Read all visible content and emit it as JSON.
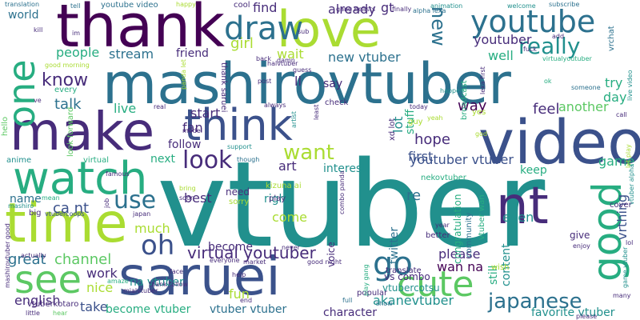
{
  "colors": {
    "background": "#ffffff",
    "palette": [
      "#440154",
      "#472c7a",
      "#3b518b",
      "#2c718e",
      "#21908d",
      "#27ad81",
      "#5cc863",
      "#aadc32",
      "#fde725"
    ]
  },
  "words": [
    {
      "text": "vtuber",
      "color": "#21908d"
    },
    {
      "text": "mashirovtuber",
      "color": "#2c718e"
    },
    {
      "text": "saruei",
      "color": "#3b528b"
    },
    {
      "text": "video",
      "color": "#3b518b"
    },
    {
      "text": "make",
      "color": "#472c7a"
    },
    {
      "text": "time",
      "color": "#aadc32"
    },
    {
      "text": "think",
      "color": "#3b518b"
    },
    {
      "text": "thank",
      "color": "#440154"
    },
    {
      "text": "love",
      "color": "#aadc32"
    },
    {
      "text": "watch",
      "color": "#27ad81"
    },
    {
      "text": "youtube",
      "color": "#2c718e"
    },
    {
      "text": "nt",
      "color": "#472c7a"
    },
    {
      "text": "one",
      "color": "#27ad81"
    },
    {
      "text": "good",
      "color": "#27ad81"
    },
    {
      "text": "see",
      "color": "#5cc863"
    },
    {
      "text": "cute",
      "color": "#5cc863"
    },
    {
      "text": "draw",
      "color": "#2c718e"
    },
    {
      "text": "go",
      "color": "#2c718e"
    },
    {
      "text": "really",
      "color": "#21908d"
    },
    {
      "text": "look",
      "color": "#472c7a"
    },
    {
      "text": "want",
      "color": "#aadc32"
    },
    {
      "text": "new",
      "color": "#2c718e"
    },
    {
      "text": "use",
      "color": "#2c718e"
    },
    {
      "text": "oh",
      "color": "#3b518b"
    },
    {
      "text": "japanese",
      "color": "#2c718e"
    },
    {
      "text": "virtual youtuber",
      "color": "#472c7a"
    },
    {
      "text": "know",
      "color": "#472c7a"
    },
    {
      "text": "stream",
      "color": "#2c718e"
    },
    {
      "text": "people",
      "color": "#27ad81"
    },
    {
      "text": "youtuber vtuber",
      "color": "#3b518b"
    },
    {
      "text": "youtuber",
      "color": "#472c7a"
    },
    {
      "text": "try",
      "color": "#27ad81"
    },
    {
      "text": "day",
      "color": "#27ad81"
    },
    {
      "text": "feel",
      "color": "#472c7a"
    },
    {
      "text": "another",
      "color": "#5cc863"
    },
    {
      "text": "way",
      "color": "#440154"
    },
    {
      "text": "first",
      "color": "#3b518b"
    },
    {
      "text": "hope",
      "color": "#472c7a"
    },
    {
      "text": "art",
      "color": "#472c7a"
    },
    {
      "text": "interest",
      "color": "#21908d"
    },
    {
      "text": "start",
      "color": "#472c7a"
    },
    {
      "text": "fan",
      "color": "#472c7a"
    },
    {
      "text": "live",
      "color": "#27ad81"
    },
    {
      "text": "talk",
      "color": "#2c718e"
    },
    {
      "text": "channel",
      "color": "#5cc863"
    },
    {
      "text": "great",
      "color": "#2c718e"
    },
    {
      "text": "work",
      "color": "#472c7a"
    },
    {
      "text": "nice",
      "color": "#aadc32"
    },
    {
      "text": "english",
      "color": "#472c7a"
    },
    {
      "text": "take",
      "color": "#3b518b"
    },
    {
      "text": "become vtuber",
      "color": "#27ad81"
    },
    {
      "text": "vtuber vtuber",
      "color": "#2c718e"
    },
    {
      "text": "character",
      "color": "#472c7a"
    },
    {
      "text": "akanevtuber",
      "color": "#21908d"
    },
    {
      "text": "favorite vtuber",
      "color": "#21908d"
    },
    {
      "text": "please",
      "color": "#472c7a"
    },
    {
      "text": "wan na",
      "color": "#440154"
    },
    {
      "text": "even",
      "color": "#21908d"
    },
    {
      "text": "still",
      "color": "#27ad81"
    },
    {
      "text": "content",
      "color": "#21908d"
    },
    {
      "text": "come",
      "color": "#aadc32"
    },
    {
      "text": "right",
      "color": "#21908d"
    },
    {
      "text": "re",
      "color": "#2c718e"
    },
    {
      "text": "twitter",
      "color": "#2c718e"
    },
    {
      "text": "vrthing",
      "color": "#3b518b"
    },
    {
      "text": "game",
      "color": "#27ad81"
    },
    {
      "text": "keep",
      "color": "#27ad81"
    },
    {
      "text": "friend",
      "color": "#472c7a"
    },
    {
      "text": "girl",
      "color": "#aadc32"
    },
    {
      "text": "wait",
      "color": "#aadc32"
    },
    {
      "text": "new vtuber",
      "color": "#2c718e"
    },
    {
      "text": "well",
      "color": "#27ad81"
    },
    {
      "text": "find",
      "color": "#472c7a"
    },
    {
      "text": "already",
      "color": "#472c7a"
    },
    {
      "text": "gt",
      "color": "#472c7a"
    },
    {
      "text": "ll",
      "color": "#472c7a"
    },
    {
      "text": "say",
      "color": "#472c7a"
    },
    {
      "text": "lot",
      "color": "#21908d"
    },
    {
      "text": "stuff",
      "color": "#27ad81"
    },
    {
      "text": "much",
      "color": "#aadc32"
    },
    {
      "text": "become",
      "color": "#472c7a"
    },
    {
      "text": "best",
      "color": "#472c7a"
    },
    {
      "text": "na vtuber",
      "color": "#21908d"
    },
    {
      "text": "ca nt",
      "color": "#3b518b"
    },
    {
      "text": "name",
      "color": "#2c718e"
    },
    {
      "text": "fun",
      "color": "#aadc32"
    },
    {
      "text": "next",
      "color": "#27ad81"
    },
    {
      "text": "follow",
      "color": "#472c7a"
    },
    {
      "text": "world",
      "color": "#2c718e"
    },
    {
      "text": "need",
      "color": "#472c7a"
    },
    {
      "text": "voice",
      "color": "#472c7a"
    },
    {
      "text": "please",
      "color": "#472c7a"
    },
    {
      "text": "vtubercotsu",
      "color": "#21908d"
    },
    {
      "text": "vs combo",
      "color": "#472c7a"
    },
    {
      "text": "youtube video",
      "color": "#2c718e"
    },
    {
      "text": "cool",
      "color": "#472c7a"
    },
    {
      "text": "translation",
      "color": "#2c718e"
    },
    {
      "text": "tell",
      "color": "#2c718e"
    },
    {
      "text": "happy",
      "color": "#aadc32"
    },
    {
      "text": "subscribe",
      "color": "#2c718e"
    },
    {
      "text": "animation",
      "color": "#21908d"
    },
    {
      "text": "gang beasts",
      "color": "#472c7a"
    },
    {
      "text": "finally",
      "color": "#472c7a"
    },
    {
      "text": "alpha lexa",
      "color": "#2c718e"
    },
    {
      "text": "vrchat",
      "color": "#2c718e"
    },
    {
      "text": "kill",
      "color": "#472c7a"
    },
    {
      "text": "im",
      "color": "#472c7a"
    },
    {
      "text": "good morning",
      "color": "#aadc32"
    },
    {
      "text": "every",
      "color": "#27ad81"
    },
    {
      "text": "ve",
      "color": "#472c7a"
    },
    {
      "text": "look forward",
      "color": "#5cc863"
    },
    {
      "text": "hello",
      "color": "#5cc863"
    },
    {
      "text": "anime",
      "color": "#21908d"
    },
    {
      "text": "virtual",
      "color": "#27ad81"
    },
    {
      "text": "mashiro",
      "color": "#21908d"
    },
    {
      "text": "mean",
      "color": "#27ad81"
    },
    {
      "text": "big",
      "color": "#472c7a"
    },
    {
      "text": "vtubercoops",
      "color": "#3b518b"
    },
    {
      "text": "japan",
      "color": "#472c7a"
    },
    {
      "text": "mashirovtuber good",
      "color": "#472c7a"
    },
    {
      "text": "actually",
      "color": "#472c7a"
    },
    {
      "text": "little",
      "color": "#472c7a"
    },
    {
      "text": "hear",
      "color": "#5cc863"
    },
    {
      "text": "vtuberkotaro",
      "color": "#472c7a"
    },
    {
      "text": "amaze",
      "color": "#27ad81"
    },
    {
      "text": "mialvtuber",
      "color": "#472c7a"
    },
    {
      "text": "thank follow",
      "color": "#472c7a"
    },
    {
      "text": "face",
      "color": "#472c7a"
    },
    {
      "text": "real",
      "color": "#472c7a"
    },
    {
      "text": "model",
      "color": "#472c7a"
    },
    {
      "text": "support",
      "color": "#21908d"
    },
    {
      "text": "though",
      "color": "#2c718e"
    },
    {
      "text": "famous",
      "color": "#472c7a"
    },
    {
      "text": "kizuna ai",
      "color": "#aadc32"
    },
    {
      "text": "sorry",
      "color": "#aadc32"
    },
    {
      "text": "help",
      "color": "#472c7a"
    },
    {
      "text": "everyone",
      "color": "#472c7a"
    },
    {
      "text": "market",
      "color": "#472c7a"
    },
    {
      "text": "never",
      "color": "#472c7a"
    },
    {
      "text": "good night",
      "color": "#472c7a"
    },
    {
      "text": "end",
      "color": "#472c7a"
    },
    {
      "text": "popular",
      "color": "#472c7a"
    },
    {
      "text": "full",
      "color": "#2c718e"
    },
    {
      "text": "show",
      "color": "#2c718e"
    },
    {
      "text": "translate",
      "color": "#472c7a"
    },
    {
      "text": "year",
      "color": "#472c7a"
    },
    {
      "text": "better",
      "color": "#472c7a"
    },
    {
      "text": "congratulation",
      "color": "#27ad81"
    },
    {
      "text": "community",
      "color": "#2c718e"
    },
    {
      "text": "vtuber wan",
      "color": "#27ad81"
    },
    {
      "text": "nekovtuber",
      "color": "#27ad81"
    },
    {
      "text": "wish",
      "color": "#aadc32"
    },
    {
      "text": "give",
      "color": "#472c7a"
    },
    {
      "text": "enjoy",
      "color": "#472c7a"
    },
    {
      "text": "cover",
      "color": "#472c7a"
    },
    {
      "text": "lol",
      "color": "#472c7a"
    },
    {
      "text": "game vtuber",
      "color": "#21908d"
    },
    {
      "text": "many",
      "color": "#472c7a"
    },
    {
      "text": "let play",
      "color": "#aadc32"
    },
    {
      "text": "vtuber alpha",
      "color": "#21908d"
    },
    {
      "text": "live video",
      "color": "#21908d"
    },
    {
      "text": "someone",
      "color": "#2c718e"
    },
    {
      "text": "ok",
      "color": "#27ad81"
    },
    {
      "text": "call",
      "color": "#472c7a"
    },
    {
      "text": "god",
      "color": "#aadc32"
    },
    {
      "text": "yes",
      "color": "#aadc32"
    },
    {
      "text": "guy",
      "color": "#aadc32"
    },
    {
      "text": "yeah",
      "color": "#aadc32"
    },
    {
      "text": "today",
      "color": "#472c7a"
    },
    {
      "text": "check",
      "color": "#472c7a"
    },
    {
      "text": "least",
      "color": "#472c7a"
    },
    {
      "text": "artist",
      "color": "#21908d"
    },
    {
      "text": "always",
      "color": "#472c7a"
    },
    {
      "text": "back",
      "color": "#472c7a"
    },
    {
      "text": "post",
      "color": "#472c7a"
    },
    {
      "text": "guess",
      "color": "#472c7a"
    },
    {
      "text": "damn",
      "color": "#472c7a"
    },
    {
      "text": "sub",
      "color": "#472c7a"
    },
    {
      "text": "halvtuber",
      "color": "#472c7a"
    },
    {
      "text": "thank saruei",
      "color": "#472c7a"
    },
    {
      "text": "panda let",
      "color": "#aadc32"
    },
    {
      "text": "welcome",
      "color": "#21908d"
    },
    {
      "text": "add",
      "color": "#472c7a"
    },
    {
      "text": "fuck",
      "color": "#472c7a"
    },
    {
      "text": "virtualyoutuber",
      "color": "#27ad81"
    },
    {
      "text": "happen",
      "color": "#21908d"
    },
    {
      "text": "broadcast",
      "color": "#27ad81"
    },
    {
      "text": "lexa first",
      "color": "#472c7a"
    },
    {
      "text": "xd lot",
      "color": "#472c7a"
    },
    {
      "text": "play",
      "color": "#472c7a"
    },
    {
      "text": "combo panda",
      "color": "#472c7a"
    },
    {
      "text": "play gang",
      "color": "#27ad81"
    },
    {
      "text": "bring",
      "color": "#aadc32"
    },
    {
      "text": "soon",
      "color": "#472c7a"
    },
    {
      "text": "job",
      "color": "#472c7a"
    }
  ]
}
